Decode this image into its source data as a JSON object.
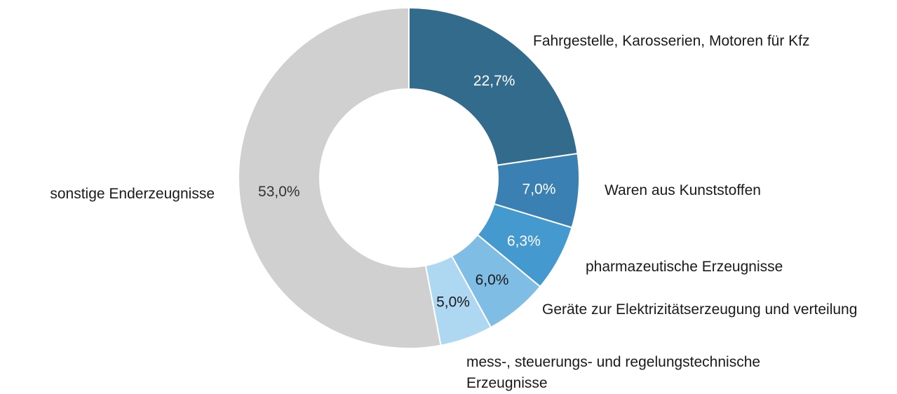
{
  "chart_data": {
    "type": "donut",
    "categories": [
      "Fahrgestelle, Karosserien, Motoren für Kfz",
      "Waren aus Kunststoffen",
      "pharmazeutische Erzeugnisse",
      "Geräte zur Elektrizitätserzeugung und verteilung",
      "mess-, steuerungs- und regelungstechnische Erzeugnisse",
      "sonstige Enderzeugnisse"
    ],
    "values": [
      22.7,
      7.0,
      6.3,
      6.0,
      5.0,
      53.0
    ],
    "value_labels": [
      "22,7%",
      "7,0%",
      "6,3%",
      "6,0%",
      "5,0%",
      "53,0%"
    ],
    "colors": [
      "#336b8d",
      "#3a80b2",
      "#4499cf",
      "#80bde4",
      "#aed7f1",
      "#d0d0d0"
    ]
  }
}
